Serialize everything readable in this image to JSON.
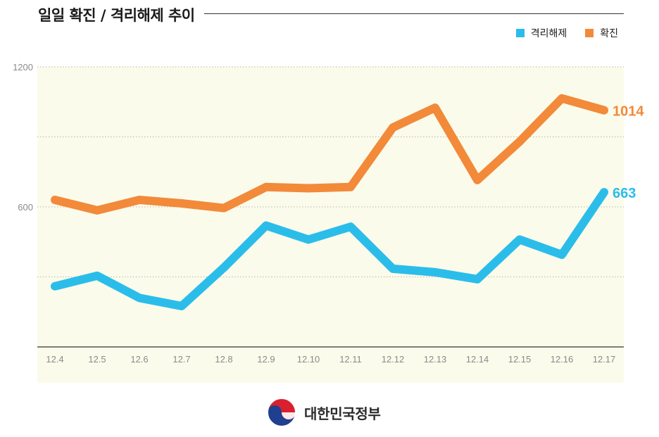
{
  "chart_data": {
    "type": "line",
    "title": "일일 확진 / 격리해제 추이",
    "xlabel": "",
    "ylabel": "",
    "categories": [
      "12.4",
      "12.5",
      "12.6",
      "12.7",
      "12.8",
      "12.9",
      "12.10",
      "12.11",
      "12.12",
      "12.13",
      "12.14",
      "12.15",
      "12.16",
      "12.17"
    ],
    "yticks": [
      600,
      1200
    ],
    "ylim": [
      0,
      1200
    ],
    "grid": true,
    "legend_position": "top-right",
    "series": [
      {
        "name": "격리해제",
        "color": "#2bbdea",
        "values": [
          260,
          305,
          210,
          175,
          340,
          520,
          460,
          515,
          335,
          320,
          290,
          460,
          395,
          663
        ],
        "end_label": "663"
      },
      {
        "name": "확진",
        "color": "#f28a3a",
        "values": [
          630,
          585,
          630,
          615,
          595,
          685,
          680,
          685,
          940,
          1025,
          715,
          880,
          1065,
          1014
        ],
        "end_label": "1014"
      }
    ]
  },
  "footer": {
    "brand": "대한민국정부"
  }
}
